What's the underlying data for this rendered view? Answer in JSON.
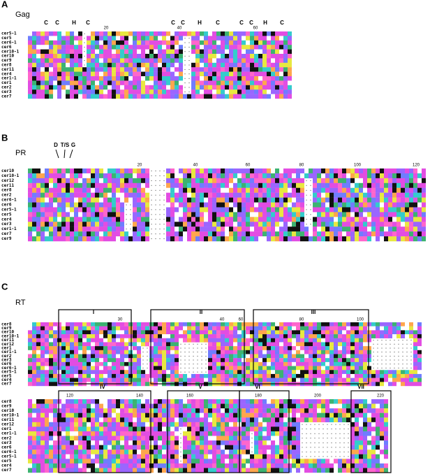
{
  "sections": [
    {
      "label": "A",
      "title": "Gag",
      "blocks": [
        {
          "annotations": [
            "C",
            "C",
            "H",
            "C",
            "C",
            "C",
            "H",
            "C",
            "C",
            "C",
            "H",
            "C"
          ],
          "positions": [
            20,
            40,
            60
          ],
          "motifs": [],
          "rows": [
            "cer5-1",
            "cer5",
            "cer6-1",
            "cer6",
            "cer10-1",
            "cer10",
            "cer9",
            "cer8",
            "cer11",
            "cer4",
            "cer1-1",
            "cer1",
            "cer2",
            "cer3",
            "cer7"
          ]
        }
      ]
    },
    {
      "label": "B",
      "title": "PR",
      "blocks": [
        {
          "annotations": [
            "D",
            "T/S",
            "G"
          ],
          "positions": [
            20,
            40,
            60,
            80,
            100,
            120
          ],
          "motifs": [],
          "rows": [
            "cer10",
            "cer10-1",
            "cer12",
            "cer11",
            "cer8",
            "cer2",
            "cer6-1",
            "cer6",
            "cer5-1",
            "cer5",
            "cer4",
            "cer3",
            "cer1-1",
            "cer7",
            "cer9"
          ]
        }
      ]
    },
    {
      "label": "C",
      "title": "RT",
      "blocks": [
        {
          "annotations": [],
          "positions": [
            30,
            40,
            60,
            80,
            100
          ],
          "motifs": [
            "I",
            "II",
            "III"
          ],
          "rows": [
            "cer8",
            "cer9",
            "cer10",
            "cer10-1",
            "cer11",
            "cer12",
            "cer1",
            "cer1-1",
            "cer2",
            "cer3",
            "cer6",
            "cer6-1",
            "cer5-1",
            "cer5",
            "cer4",
            "cer7"
          ]
        },
        {
          "annotations": [],
          "positions": [
            120,
            140,
            160,
            180,
            200,
            220
          ],
          "motifs": [
            "IV",
            "V",
            "VI",
            "VII"
          ],
          "rows": [
            "cer8",
            "cer9",
            "cer10",
            "cer10-1",
            "cer11",
            "cer12",
            "cer1",
            "cer1-1",
            "cer2",
            "cer3",
            "cer6",
            "cer6-1",
            "cer5-1",
            "cer5",
            "cer4",
            "cer7"
          ]
        }
      ]
    }
  ]
}
